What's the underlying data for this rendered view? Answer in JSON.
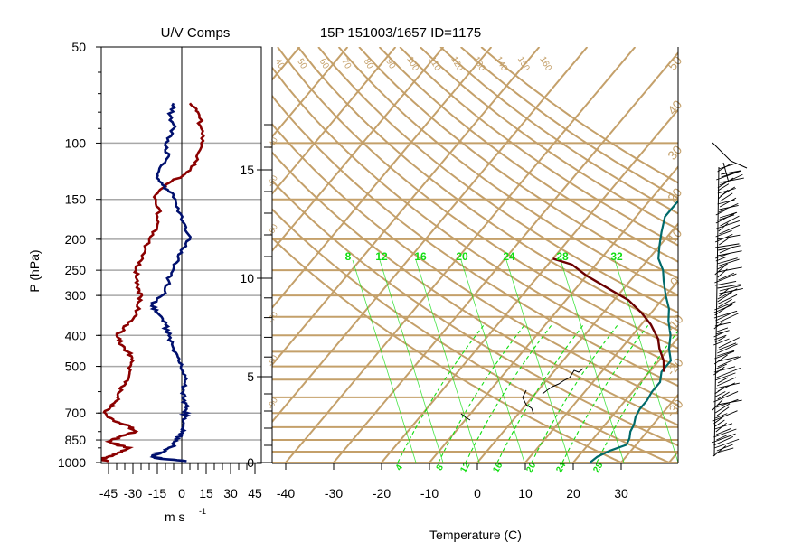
{
  "uv_panel": {
    "title": "U/V Comps",
    "ylabel": "P (hPa)",
    "xlabel": "m s",
    "xlabel_exp": "-1",
    "pressure_ticks": [
      "50",
      "100",
      "150",
      "200",
      "250",
      "300",
      "400",
      "500",
      "700",
      "850",
      "1000"
    ],
    "speed_ticks": [
      "-45",
      "-30",
      "-15",
      "0",
      "15",
      "30",
      "45"
    ]
  },
  "skewt_panel": {
    "title": "15P 151003/1657 ID=1175",
    "xlabel": "Temperature (C)",
    "temp_ticks": [
      "-40",
      "-30",
      "-20",
      "-10",
      "0",
      "10",
      "20",
      "30"
    ],
    "height_ticks": [
      "0",
      "5",
      "10",
      "15"
    ],
    "dry_adiabat_labels": [
      "40",
      "50",
      "60",
      "70",
      "80",
      "90",
      "100",
      "110",
      "120",
      "130",
      "140",
      "150",
      "160"
    ],
    "mixing_ratio_labels": [
      "8",
      "12",
      "16",
      "20",
      "24",
      "28",
      "32"
    ],
    "dashed_bottom_labels": [
      "4",
      "8",
      "12",
      "16",
      "20",
      "24",
      "28"
    ],
    "right_isotherm_labels": [
      "50",
      "40",
      "30",
      "20",
      "10",
      "0",
      "-10",
      "-20",
      "-30"
    ],
    "left_isotherm_labels": [
      "-40",
      "-50",
      "-60",
      "-70",
      "-80",
      "-90"
    ]
  },
  "colors": {
    "u_component": "#8b0000",
    "v_component": "#00106e",
    "temperature": "#006a6a",
    "dewpoint": "#6b0000",
    "background_lines": "#c4a06a",
    "mixing_ratio": "#11dd11"
  },
  "chart_data": [
    {
      "type": "line",
      "title": "U/V Comps",
      "xlabel": "m s-1",
      "ylabel": "P (hPa)",
      "ylim": [
        1000,
        50
      ],
      "xlim": [
        -55,
        55
      ],
      "y_scale": "log",
      "series": [
        {
          "name": "U",
          "points": [
            [
              -45,
              990
            ],
            [
              -50,
              975
            ],
            [
              -45,
              960
            ],
            [
              -40,
              940
            ],
            [
              -32,
              900
            ],
            [
              -40,
              880
            ],
            [
              -45,
              860
            ],
            [
              -38,
              830
            ],
            [
              -28,
              800
            ],
            [
              -32,
              770
            ],
            [
              -42,
              740
            ],
            [
              -47,
              700
            ],
            [
              -44,
              670
            ],
            [
              -40,
              640
            ],
            [
              -38,
              600
            ],
            [
              -35,
              560
            ],
            [
              -32,
              520
            ],
            [
              -30,
              480
            ],
            [
              -33,
              450
            ],
            [
              -38,
              420
            ],
            [
              -40,
              400
            ],
            [
              -33,
              370
            ],
            [
              -28,
              340
            ],
            [
              -25,
              310
            ],
            [
              -26,
              290
            ],
            [
              -27,
              270
            ],
            [
              -28,
              250
            ],
            [
              -24,
              230
            ],
            [
              -20,
              200
            ],
            [
              -15,
              180
            ],
            [
              -14,
              160
            ],
            [
              -16,
              145
            ],
            [
              -10,
              135
            ],
            [
              2,
              125
            ],
            [
              8,
              115
            ],
            [
              12,
              100
            ],
            [
              12,
              90
            ],
            [
              10,
              80
            ],
            [
              5,
              75
            ]
          ]
        },
        {
          "name": "V",
          "points": [
            [
              3,
              990
            ],
            [
              -15,
              970
            ],
            [
              -18,
              950
            ],
            [
              -10,
              920
            ],
            [
              -5,
              880
            ],
            [
              -2,
              840
            ],
            [
              0,
              800
            ],
            [
              1,
              760
            ],
            [
              2,
              720
            ],
            [
              3,
              680
            ],
            [
              2,
              640
            ],
            [
              1,
              600
            ],
            [
              2,
              560
            ],
            [
              1,
              520
            ],
            [
              -2,
              480
            ],
            [
              -5,
              440
            ],
            [
              -8,
              400
            ],
            [
              -10,
              370
            ],
            [
              -15,
              340
            ],
            [
              -18,
              320
            ],
            [
              -12,
              300
            ],
            [
              -8,
              270
            ],
            [
              -5,
              240
            ],
            [
              0,
              220
            ],
            [
              5,
              200
            ],
            [
              2,
              180
            ],
            [
              -2,
              160
            ],
            [
              -5,
              145
            ],
            [
              -12,
              135
            ],
            [
              -15,
              125
            ],
            [
              -8,
              110
            ],
            [
              -10,
              100
            ],
            [
              -5,
              90
            ],
            [
              -7,
              82
            ],
            [
              -5,
              75
            ]
          ]
        }
      ]
    },
    {
      "type": "line",
      "title": "15P 151003/1657 ID=1175",
      "xlabel": "Temperature (C)",
      "xlim": [
        -45,
        45
      ],
      "series": [
        {
          "name": "Temperature",
          "points": [
            [
              23.5,
              1000
            ],
            [
              24,
              960
            ],
            [
              25.5,
              920
            ],
            [
              28,
              880
            ],
            [
              27.5,
              840
            ],
            [
              26.5,
              800
            ],
            [
              26,
              760
            ],
            [
              25,
              720
            ],
            [
              24.5,
              680
            ],
            [
              24.5,
              640
            ],
            [
              24,
              600
            ],
            [
              24,
              560
            ],
            [
              22.5,
              520
            ],
            [
              22.5,
              480
            ],
            [
              20,
              440
            ],
            [
              18,
              400
            ],
            [
              15,
              360
            ],
            [
              13,
              330
            ],
            [
              10,
              300
            ],
            [
              7,
              270
            ],
            [
              5,
              250
            ],
            [
              2,
              230
            ],
            [
              0,
              210
            ],
            [
              -2,
              190
            ],
            [
              -4,
              170
            ],
            [
              -4,
              150
            ],
            [
              -5,
              130
            ],
            [
              -5.5,
              110
            ],
            [
              -6,
              100
            ],
            [
              -3,
              95
            ],
            [
              3,
              90
            ],
            [
              7,
              85
            ],
            [
              8,
              80
            ],
            [
              9,
              75
            ]
          ]
        },
        {
          "name": "Dewpoint",
          "points": [
            [
              23,
              520
            ],
            [
              21,
              480
            ],
            [
              18,
              440
            ],
            [
              16,
              410
            ],
            [
              12,
              370
            ],
            [
              8,
              340
            ],
            [
              3,
              310
            ],
            [
              -2,
              290
            ],
            [
              -10,
              260
            ],
            [
              -15,
              240
            ],
            [
              -20,
              230
            ]
          ]
        }
      ]
    }
  ]
}
